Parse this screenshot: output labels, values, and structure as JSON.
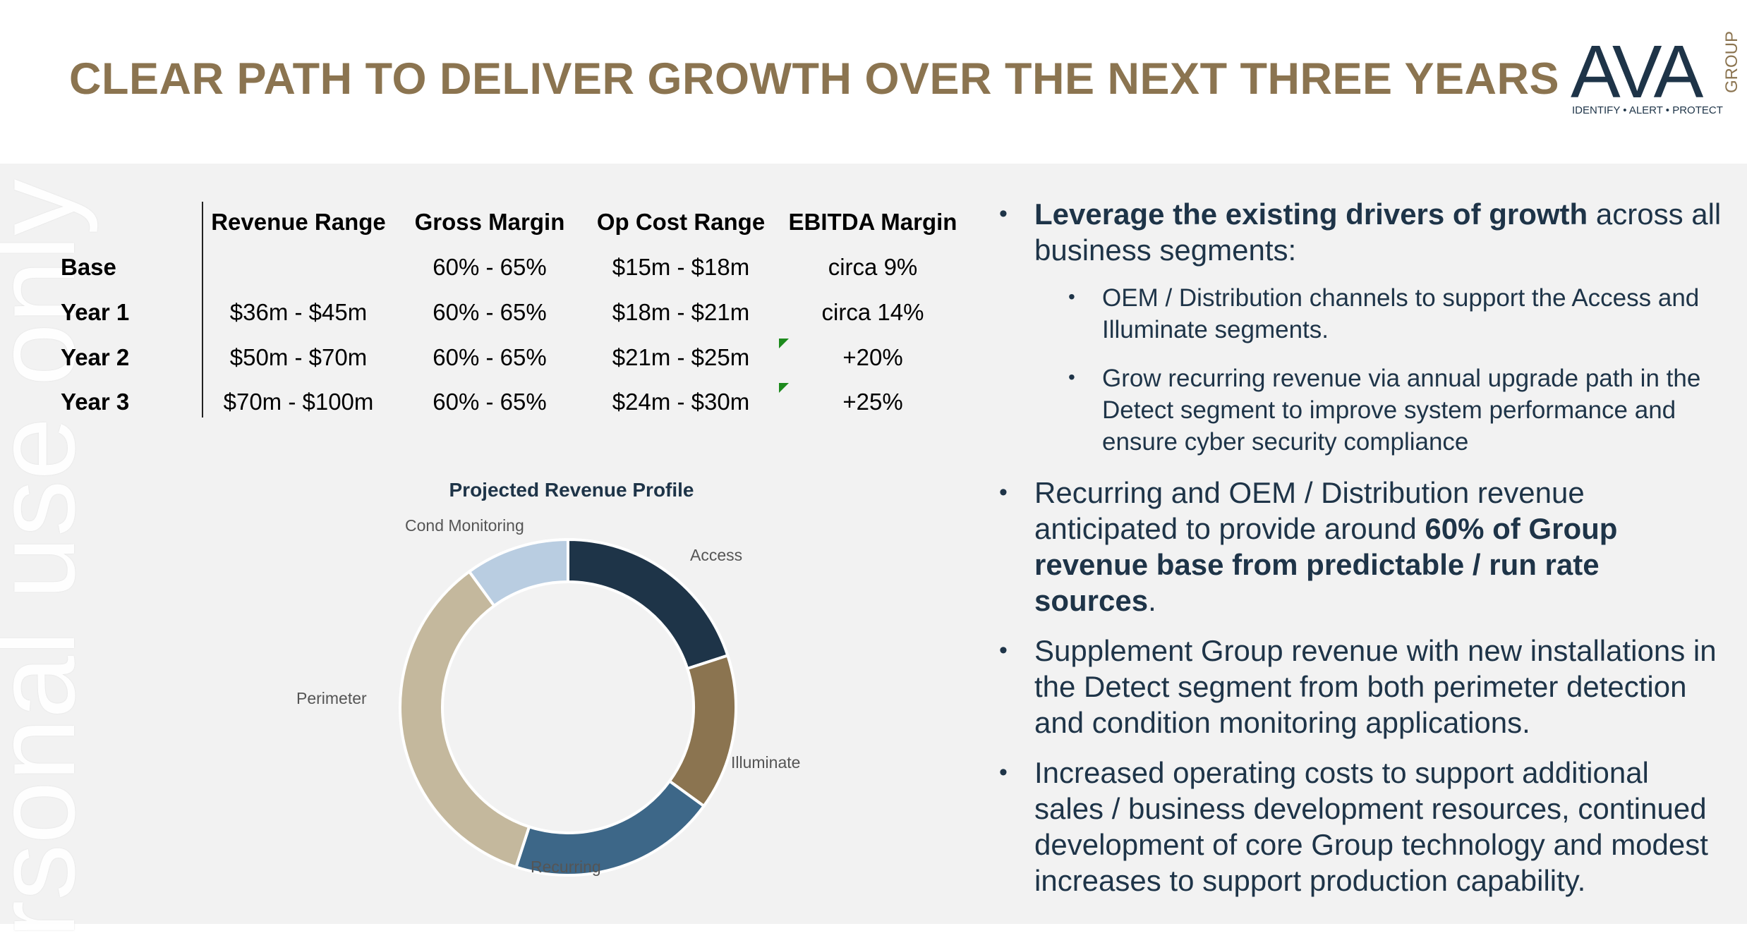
{
  "header": {
    "title": "CLEAR PATH TO DELIVER GROWTH OVER THE NEXT THREE YEARS",
    "logo": {
      "wordmark": "AVA",
      "side_text": "GROUP",
      "tagline": "IDENTIFY • ALERT • PROTECT",
      "color": "#1e3448"
    }
  },
  "watermark": "rsonal use only",
  "table": {
    "headers": [
      "Revenue Range",
      "Gross Margin",
      "Op Cost Range",
      "EBITDA Margin"
    ],
    "rows": [
      {
        "label": "Base",
        "revenue": "",
        "gross": "60% - 65%",
        "opcost": "$15m - $18m",
        "ebitda": "circa 9%"
      },
      {
        "label": "Year 1",
        "revenue": "$36m - $45m",
        "gross": "60% - 65%",
        "opcost": "$18m - $21m",
        "ebitda": "circa 14%"
      },
      {
        "label": "Year 2",
        "revenue": "$50m - $70m",
        "gross": "60% - 65%",
        "opcost": "$21m - $25m",
        "ebitda": "+20%"
      },
      {
        "label": "Year 3",
        "revenue": "$70m - $100m",
        "gross": "60% - 65%",
        "opcost": "$24m - $30m",
        "ebitda": "+25%"
      }
    ]
  },
  "chart_data": {
    "type": "pie",
    "title": "Projected Revenue Profile",
    "donut": true,
    "categories": [
      "Access",
      "Illuminate",
      "Recurring",
      "Perimeter",
      "Cond Monitoring"
    ],
    "values": [
      20,
      15,
      20,
      35,
      10
    ],
    "colors": [
      "#1e3448",
      "#8b7450",
      "#3d6788",
      "#c4b89d",
      "#b9cde1"
    ],
    "legend": "labels-outside"
  },
  "bullets": {
    "b1": {
      "bold": "Leverage the existing drivers of growth",
      "rest": " across all business segments:"
    },
    "b1_sub1": "OEM / Distribution channels to support the Access and Illuminate segments.",
    "b1_sub2": "Grow recurring revenue via annual upgrade path in the Detect segment to improve system performance and ensure cyber security compliance",
    "b2": {
      "pre": "Recurring and OEM / Distribution revenue anticipated to provide around ",
      "bold": "60% of Group revenue base from predictable / run rate sources",
      "post": "."
    },
    "b3": "Supplement Group revenue with new installations in the Detect segment from both perimeter detection and condition monitoring applications.",
    "b4": "Increased operating costs to support additional sales / business development resources, continued development of core Group technology and modest increases to support production capability."
  }
}
